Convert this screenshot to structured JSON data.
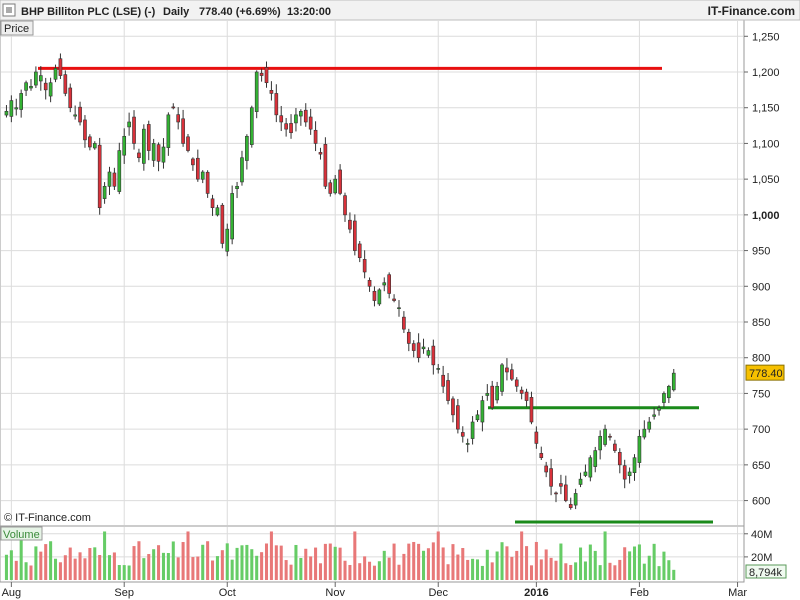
{
  "header": {
    "instrument": "BHP Billiton PLC (LSE) (-)",
    "period": "Daily",
    "last": "778.40 (+6.69%)",
    "time": "13:20:00",
    "brand": "IT-Finance.com",
    "copyright": "© IT-Finance.com"
  },
  "price_panel": {
    "label": "Price",
    "last_price_label": "778.40"
  },
  "volume_panel": {
    "label": "Volume",
    "last_volume_label": "8,794k"
  },
  "colors": {
    "up": "#33b233",
    "down": "#d9313a",
    "resistance": "#e81010",
    "support": "#1a8a1a",
    "last_badge": "#f6c000",
    "grid": "#dcdcdc"
  },
  "chart_data": {
    "type": "candlestick",
    "title": "BHP Billiton PLC (LSE) (-)",
    "ylabel": "Price",
    "ylim": [
      570,
      1270
    ],
    "y_ticks": [
      {
        "v": 1250,
        "label": "1,250"
      },
      {
        "v": 1200,
        "label": "1,200"
      },
      {
        "v": 1150,
        "label": "1,150"
      },
      {
        "v": 1100,
        "label": "1,100"
      },
      {
        "v": 1050,
        "label": "1,050"
      },
      {
        "v": 1000,
        "label": "1,000"
      },
      {
        "v": 950,
        "label": "950"
      },
      {
        "v": 900,
        "label": "900"
      },
      {
        "v": 850,
        "label": "850"
      },
      {
        "v": 800,
        "label": "800"
      },
      {
        "v": 750,
        "label": "750"
      },
      {
        "v": 700,
        "label": "700"
      },
      {
        "v": 650,
        "label": "650"
      },
      {
        "v": 600,
        "label": "600"
      }
    ],
    "x_ticks": [
      {
        "i": 1,
        "label": "Aug",
        "bold": false
      },
      {
        "i": 24,
        "label": "Sep",
        "bold": false
      },
      {
        "i": 45,
        "label": "Oct",
        "bold": false
      },
      {
        "i": 67,
        "label": "Nov",
        "bold": false
      },
      {
        "i": 88,
        "label": "Dec",
        "bold": false
      },
      {
        "i": 108,
        "label": "2016",
        "bold": true
      },
      {
        "i": 129,
        "label": "Feb",
        "bold": false
      },
      {
        "i": 149,
        "label": "Mar",
        "bold": false
      }
    ],
    "closes": [
      1145,
      1160,
      1150,
      1170,
      1185,
      1180,
      1200,
      1195,
      1175,
      1185,
      1205,
      1195,
      1170,
      1150,
      1140,
      1130,
      1105,
      1095,
      1100,
      1010,
      1040,
      1060,
      1040,
      1090,
      1110,
      1130,
      1100,
      1080,
      1120,
      1090,
      1100,
      1075,
      1095,
      1140,
      1150,
      1130,
      1100,
      1090,
      1070,
      1050,
      1060,
      1030,
      1010,
      1010,
      960,
      980,
      1030,
      1040,
      1080,
      1110,
      1150,
      1200,
      1195,
      1185,
      1170,
      1140,
      1130,
      1120,
      1115,
      1140,
      1145,
      1130,
      1120,
      1100,
      1085,
      1040,
      1030,
      1050,
      1030,
      1000,
      980,
      950,
      940,
      920,
      900,
      880,
      895,
      905,
      890,
      880,
      870,
      840,
      820,
      810,
      800,
      815,
      810,
      790,
      785,
      760,
      740,
      720,
      700,
      690,
      680,
      710,
      720,
      740,
      750,
      730,
      760,
      790,
      780,
      770,
      760,
      750,
      740,
      710,
      680,
      660,
      640,
      620,
      610,
      620,
      600,
      590,
      610,
      630,
      640,
      660,
      670,
      690,
      700,
      690,
      670,
      650,
      630,
      640,
      660,
      690,
      700,
      710,
      720,
      730,
      750,
      760,
      778.4
    ],
    "resistance_level": 1205,
    "neckline_level": 730,
    "support_level": 570,
    "volume": {
      "ylim": [
        0,
        45000
      ],
      "y_ticks": [
        {
          "v": 40000,
          "label": "40M"
        },
        {
          "v": 20000,
          "label": "20M"
        }
      ],
      "last": 8794
    }
  }
}
